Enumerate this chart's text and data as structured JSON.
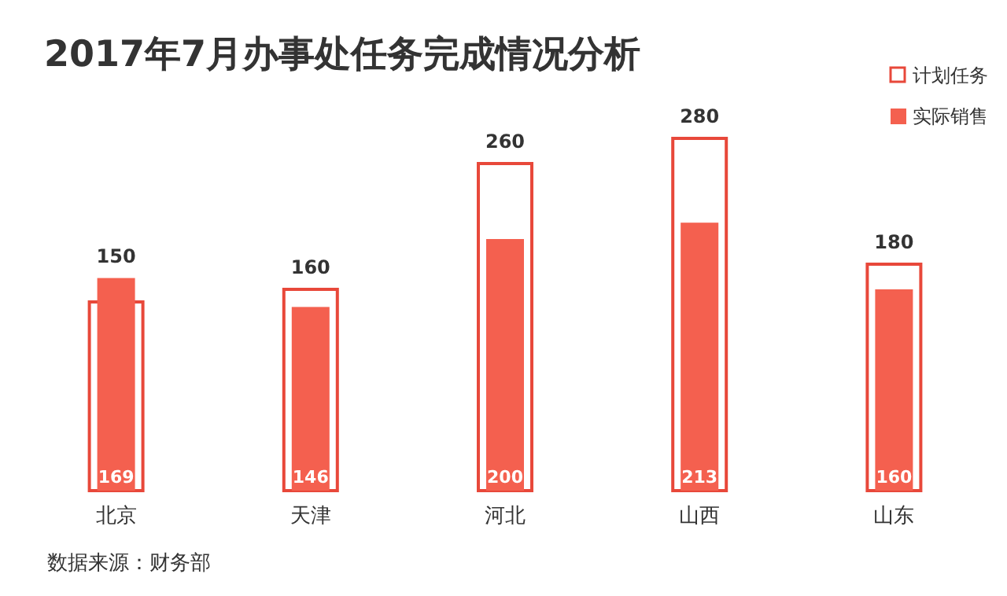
{
  "chart_data": {
    "type": "bar",
    "title": "2017年7月办事处任务完成情况分析",
    "categories": [
      "北京",
      "天津",
      "河北",
      "山西",
      "山东"
    ],
    "series": [
      {
        "name": "计划任务",
        "color": "#e8483a",
        "values": [
          150,
          160,
          260,
          280,
          180
        ]
      },
      {
        "name": "实际销售",
        "color": "#f4604f",
        "values": [
          169,
          146,
          200,
          213,
          160
        ]
      }
    ],
    "data_labels": true,
    "legend": "top right",
    "annotations": [
      "数据来源：财务部"
    ]
  }
}
